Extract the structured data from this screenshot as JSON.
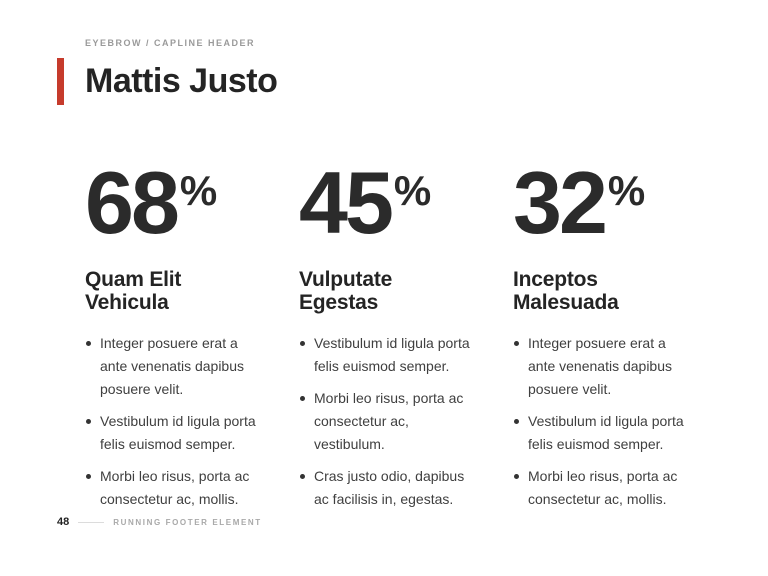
{
  "slide": {
    "eyebrow": "EYEBROW / CAPLINE HEADER",
    "title": "Mattis Justo",
    "accent_color": "#c63b2c",
    "columns": [
      {
        "stat_value": "68",
        "stat_unit": "%",
        "heading": "Quam Elit\nVehicula",
        "bullets": [
          "Integer posuere erat a\nante venenatis dapibus\nposuere velit.",
          "Vestibulum id ligula porta\nfelis euismod semper.",
          "Morbi leo risus, porta ac\nconsectetur ac, mollis."
        ]
      },
      {
        "stat_value": "45",
        "stat_unit": "%",
        "heading": "Vulputate\nEgestas",
        "bullets": [
          "Vestibulum id ligula porta\nfelis euismod semper.",
          "Morbi leo risus, porta ac\nconsectetur ac,\nvestibulum.",
          "Cras justo odio, dapibus\nac facilisis in, egestas."
        ]
      },
      {
        "stat_value": "32",
        "stat_unit": "%",
        "heading": "Inceptos\nMalesuada",
        "bullets": [
          "Integer posuere erat a\nante venenatis dapibus\nposuere velit.",
          "Vestibulum id ligula porta\nfelis euismod semper.",
          "Morbi leo risus, porta ac\nconsectetur ac, mollis."
        ]
      }
    ],
    "footer": {
      "page_number": "48",
      "label": "RUNNING FOOTER ELEMENT"
    }
  }
}
